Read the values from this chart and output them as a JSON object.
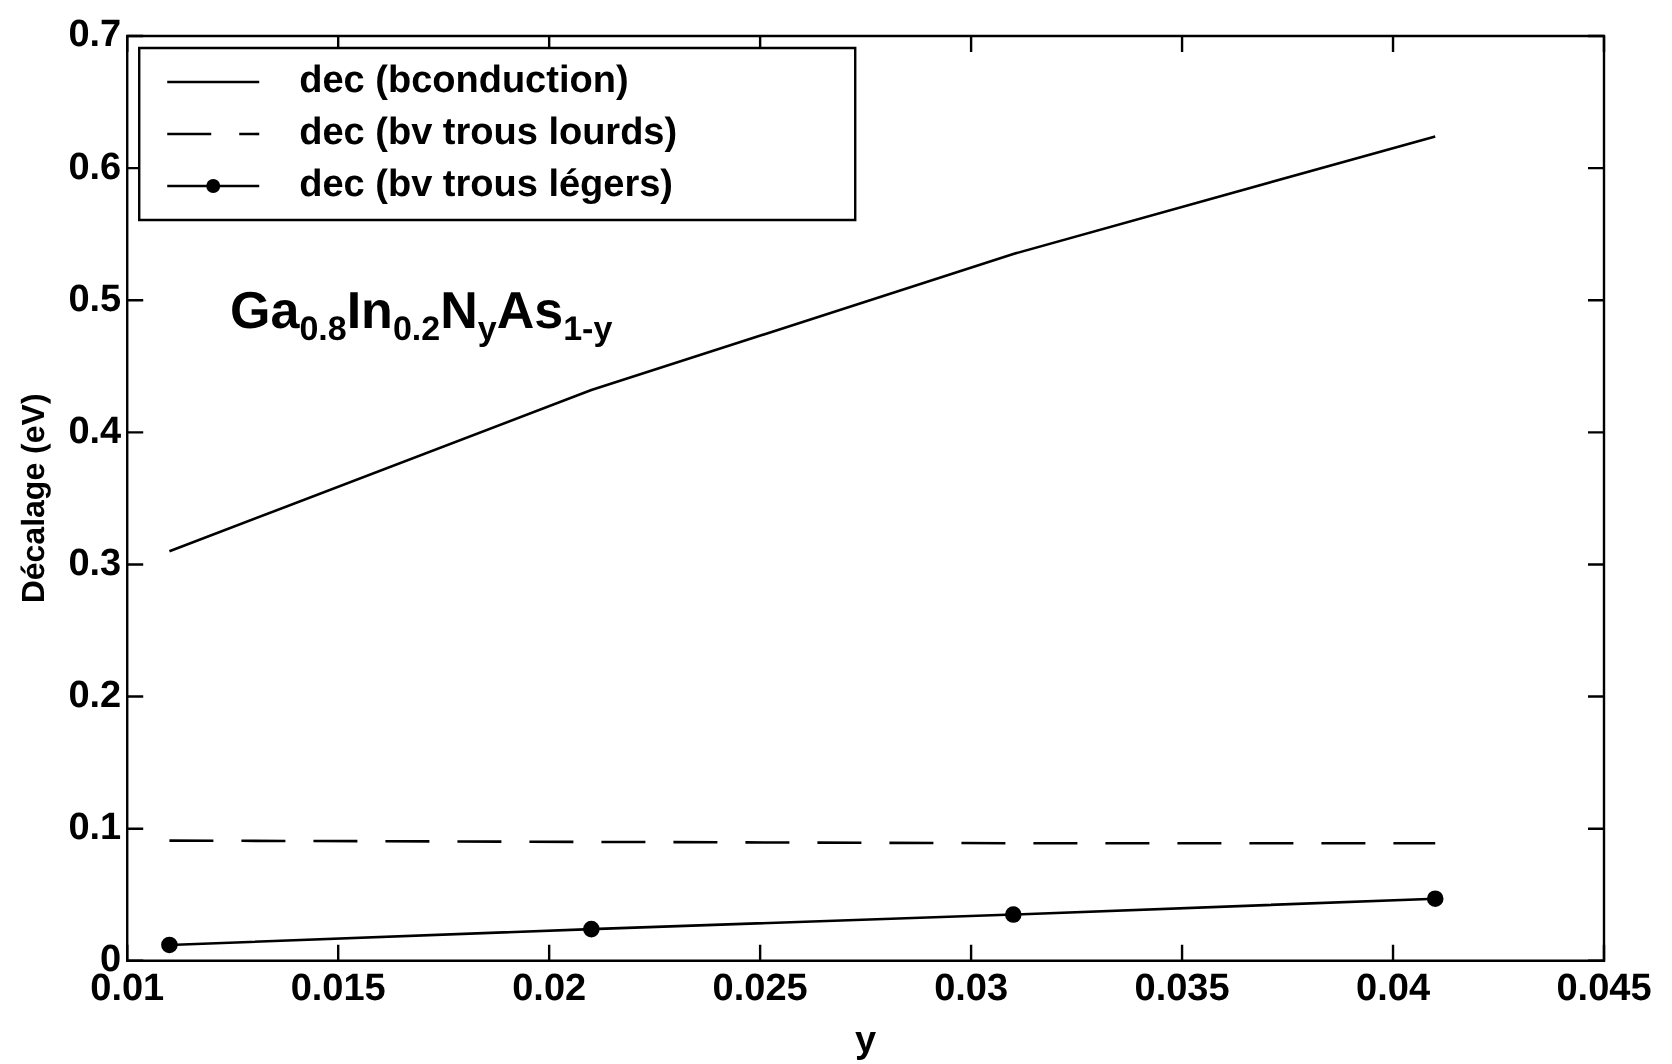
{
  "chart_data": {
    "type": "line",
    "xlabel": "y",
    "ylabel": "Décalage (eV)",
    "annotations": [
      "Ga$_{0.8}$In$_{0.2}$N$_{y}$As$_{1-y}$"
    ],
    "x": [
      0.011,
      0.021,
      0.031,
      0.041
    ],
    "series": [
      {
        "name": "dec (bconduction)",
        "color": "#000000",
        "values": [
          0.31,
          0.432,
          0.535,
          0.624
        ],
        "line_style": "solid",
        "marker": "none"
      },
      {
        "name": "dec (bv trous lourds)",
        "color": "#000000",
        "values": [
          0.091,
          0.09,
          0.089,
          0.089
        ],
        "line_style": "dashed",
        "marker": "none"
      },
      {
        "name": "dec (bv trous légers)",
        "color": "#000000",
        "values": [
          0.012,
          0.024,
          0.035,
          0.047
        ],
        "line_style": "solid",
        "marker": "circle"
      }
    ],
    "xlim": [
      0.01,
      0.045
    ],
    "xticks": [
      0.01,
      0.015,
      0.02,
      0.025,
      0.03,
      0.035,
      0.04,
      0.045
    ],
    "ylim": [
      0,
      0.7
    ],
    "yticks": [
      0,
      0.1,
      0.2,
      0.3,
      0.4,
      0.5,
      0.6,
      0.7
    ],
    "grid": false,
    "legend": "top left"
  }
}
